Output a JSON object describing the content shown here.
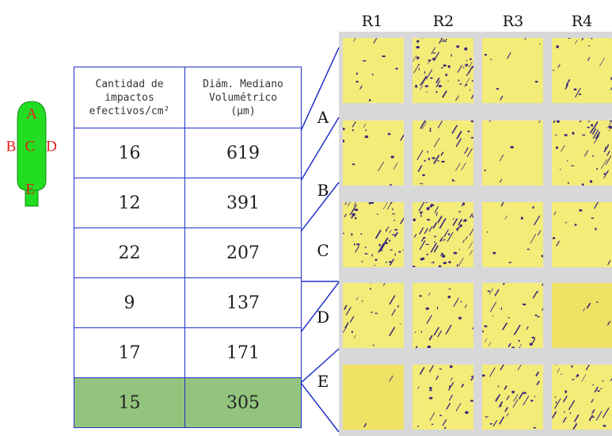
{
  "tank": {
    "labels": [
      "A",
      "B",
      "C",
      "D",
      "E"
    ],
    "colors": {
      "body": "#22dd22",
      "outline": "#138a13",
      "label": "#e0201c"
    }
  },
  "table": {
    "headers": [
      "Cantidad de impactos efectivos/cm²",
      "Diám. Mediano Volumétrico (μm)"
    ],
    "header_lines": [
      [
        "Cantidad de",
        "impactos",
        "efectivos/cm²"
      ],
      [
        "Diám. Mediano",
        "Volumétrico",
        "(μm)"
      ]
    ],
    "rows": [
      [
        "16",
        "619"
      ],
      [
        "12",
        "391"
      ],
      [
        "22",
        "207"
      ],
      [
        "9",
        "137"
      ],
      [
        "17",
        "171"
      ],
      [
        "15",
        "305"
      ]
    ],
    "highlight_row": 5,
    "colors": {
      "border": "#2030c8",
      "highlight": "#93c47d"
    }
  },
  "zones": [
    "A",
    "B",
    "C",
    "D",
    "E"
  ],
  "grid": {
    "columns": [
      "R1",
      "R2",
      "R3",
      "R4"
    ],
    "rows": [
      "A",
      "B",
      "C",
      "D",
      "E"
    ],
    "colors": {
      "card": "#f4ec78",
      "stain": "#3a2a7a",
      "panel": "#d8d8d8"
    }
  }
}
